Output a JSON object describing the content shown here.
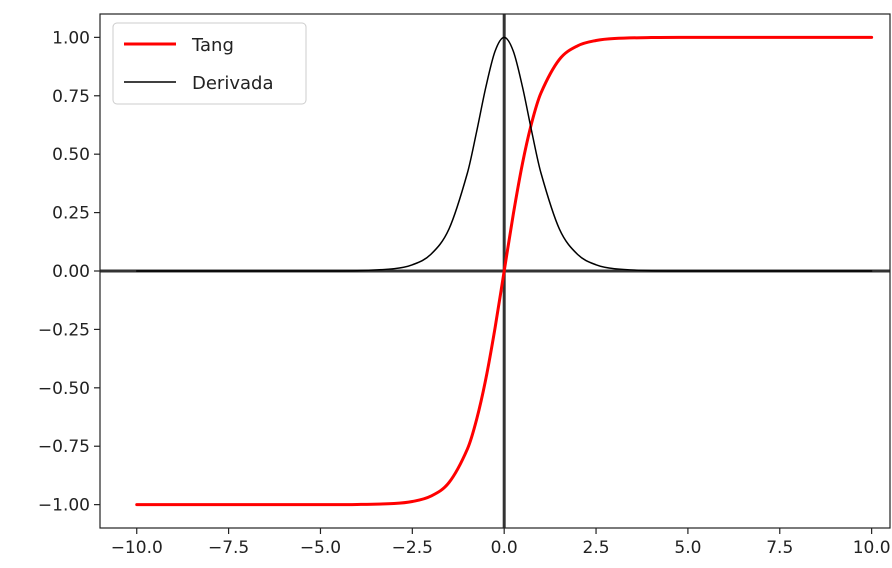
{
  "chart_data": {
    "type": "line",
    "title": "",
    "xlabel": "",
    "ylabel": "",
    "xlim": [
      -11.0,
      10.5
    ],
    "ylim": [
      -1.1,
      1.1
    ],
    "xticks": [
      -10.0,
      -7.5,
      -5.0,
      -2.5,
      0.0,
      2.5,
      5.0,
      7.5,
      10.0
    ],
    "xtick_labels": [
      "−10.0",
      "−7.5",
      "−5.0",
      "−2.5",
      "0.0",
      "2.5",
      "5.0",
      "7.5",
      "10.0"
    ],
    "yticks": [
      1.0,
      0.75,
      0.5,
      0.25,
      0.0,
      -0.25,
      -0.5,
      -0.75,
      -1.0
    ],
    "ytick_labels": [
      "1.00",
      "0.75",
      "0.50",
      "0.25",
      "0.00",
      "−0.25",
      "−0.50",
      "−0.75",
      "−1.00"
    ],
    "grid": false,
    "legend_position": "top-left",
    "reference_lines": {
      "horizontal_y": 0.0,
      "vertical_x": 0.0,
      "color": "#333333"
    },
    "x": [
      -10,
      -9,
      -8,
      -7,
      -6,
      -5,
      -4,
      -3,
      -2.5,
      -2,
      -1.5,
      -1,
      -0.75,
      -0.5,
      -0.25,
      0,
      0.25,
      0.5,
      0.75,
      1,
      1.5,
      2,
      2.5,
      3,
      4,
      5,
      6,
      7,
      8,
      9,
      10
    ],
    "series": [
      {
        "name": "Tang",
        "color": "#ff0000",
        "values": [
          -1.0,
          -1.0,
          -1.0,
          -1.0,
          -1.0,
          -1.0,
          -0.9993,
          -0.9951,
          -0.9866,
          -0.964,
          -0.9051,
          -0.7616,
          -0.6351,
          -0.4621,
          -0.2449,
          0.0,
          0.2449,
          0.4621,
          0.6351,
          0.7616,
          0.9051,
          0.964,
          0.9866,
          0.9951,
          0.9993,
          1.0,
          1.0,
          1.0,
          1.0,
          1.0,
          1.0
        ]
      },
      {
        "name": "Derivada",
        "color": "#000000",
        "values": [
          0.0,
          0.0,
          0.0,
          0.0,
          0.0,
          0.0002,
          0.0013,
          0.0099,
          0.0266,
          0.0707,
          0.1807,
          0.42,
          0.5966,
          0.7864,
          0.94,
          1.0,
          0.94,
          0.7864,
          0.5966,
          0.42,
          0.1807,
          0.0707,
          0.0266,
          0.0099,
          0.0013,
          0.0002,
          0.0,
          0.0,
          0.0,
          0.0,
          0.0
        ]
      }
    ]
  }
}
